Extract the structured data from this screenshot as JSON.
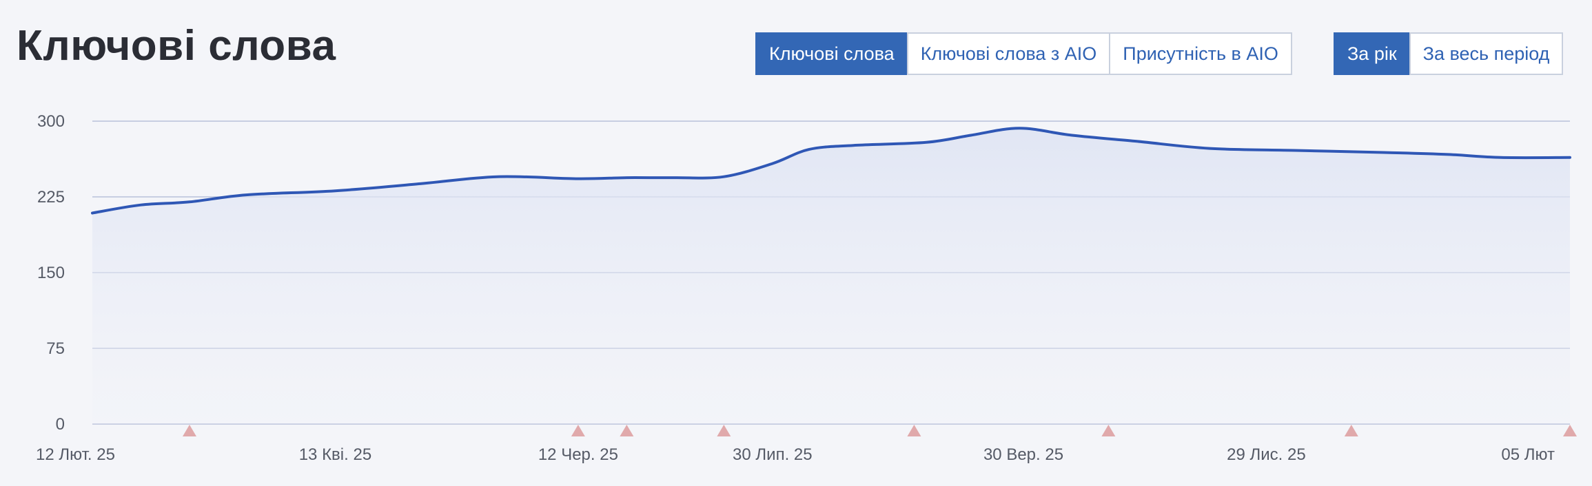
{
  "header": {
    "title": "Ключові слова"
  },
  "metric_buttons": [
    {
      "label": "Ключові слова",
      "active": true
    },
    {
      "label": "Ключові слова з AIO",
      "active": false
    },
    {
      "label": "Присутність в AIO",
      "active": false
    }
  ],
  "period_buttons": [
    {
      "label": "За рік",
      "active": true
    },
    {
      "label": "За весь період",
      "active": false
    }
  ],
  "colors": {
    "accent": "#3367b5",
    "line": "#2f57b5",
    "grid": "#b8c1da",
    "marker": "#e0a9ab"
  },
  "chart_data": {
    "type": "area",
    "title": "",
    "xlabel": "",
    "ylabel": "",
    "ylim": [
      0,
      300
    ],
    "yticks": [
      0,
      75,
      150,
      225,
      300
    ],
    "xticks": [
      {
        "date": "2025-02-12",
        "label": "12 Лют. 25"
      },
      {
        "date": "2025-04-13",
        "label": "13 Кві. 25"
      },
      {
        "date": "2025-06-12",
        "label": "12 Чер. 25"
      },
      {
        "date": "2025-07-30",
        "label": "30 Лип. 25"
      },
      {
        "date": "2025-09-30",
        "label": "30 Вер. 25"
      },
      {
        "date": "2025-11-29",
        "label": "29 Лис. 25"
      },
      {
        "date": "2026-02-05",
        "label": "05 Лют"
      }
    ],
    "grid": true,
    "legend": "none",
    "series": [
      {
        "points": [
          [
            "2025-02-12",
            209
          ],
          [
            "2025-02-24",
            217
          ],
          [
            "2025-03-08",
            220
          ],
          [
            "2025-03-22",
            227
          ],
          [
            "2025-04-13",
            231
          ],
          [
            "2025-05-04",
            238
          ],
          [
            "2025-05-23",
            245
          ],
          [
            "2025-06-12",
            243
          ],
          [
            "2025-06-24",
            244
          ],
          [
            "2025-07-06",
            244
          ],
          [
            "2025-07-18",
            245
          ],
          [
            "2025-07-30",
            258
          ],
          [
            "2025-08-08",
            272
          ],
          [
            "2025-08-19",
            276
          ],
          [
            "2025-09-06",
            279
          ],
          [
            "2025-09-17",
            286
          ],
          [
            "2025-09-29",
            293
          ],
          [
            "2025-10-12",
            286
          ],
          [
            "2025-10-28",
            280
          ],
          [
            "2025-11-15",
            273
          ],
          [
            "2025-12-06",
            271
          ],
          [
            "2025-12-28",
            269
          ],
          [
            "2026-01-13",
            267
          ],
          [
            "2026-01-26",
            264
          ],
          [
            "2026-02-12",
            264
          ]
        ]
      }
    ],
    "markers": [
      "2025-03-08",
      "2025-06-12",
      "2025-06-24",
      "2025-07-18",
      "2025-09-03",
      "2025-10-21",
      "2025-12-20",
      "2026-02-12"
    ]
  }
}
